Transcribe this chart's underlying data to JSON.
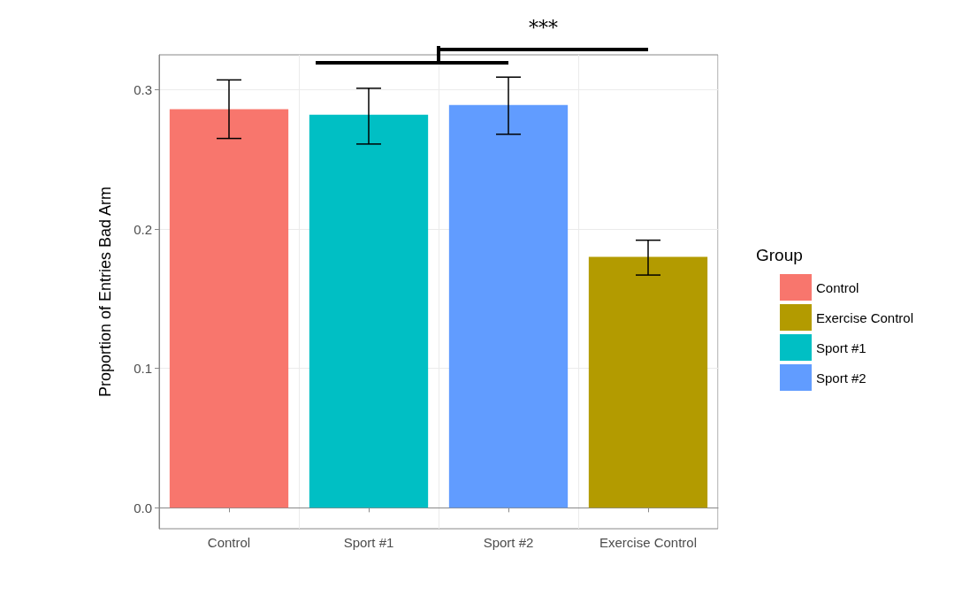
{
  "chart_data": {
    "type": "bar",
    "ylabel": "Proportion of Entries Bad Arm",
    "legend_title": "Group",
    "categories": [
      "Control",
      "Sport #1",
      "Sport #2",
      "Exercise Control"
    ],
    "series": [
      {
        "name": "Control",
        "color": "#f8766d",
        "values": [
          0.286,
          null,
          null,
          null
        ],
        "errors": [
          [
            0.265,
            0.307
          ],
          null,
          null,
          null
        ]
      },
      {
        "name": "Exercise Control",
        "color": "#b39b00",
        "values": [
          null,
          null,
          null,
          0.18
        ],
        "errors": [
          null,
          null,
          null,
          [
            0.167,
            0.192
          ]
        ]
      },
      {
        "name": "Sport #1",
        "color": "#00bfc4",
        "values": [
          null,
          0.282,
          null,
          null
        ],
        "errors": [
          null,
          [
            0.261,
            0.301
          ],
          null,
          null
        ]
      },
      {
        "name": "Sport #2",
        "color": "#619cff",
        "values": [
          null,
          null,
          0.289,
          null
        ],
        "errors": [
          null,
          null,
          [
            0.268,
            0.309
          ],
          null
        ]
      }
    ],
    "stacked": true,
    "ylim": [
      -0.015,
      0.325
    ],
    "yticks": [
      {
        "value": 0,
        "label": "0.0"
      },
      0.1,
      0.2,
      0.3
    ],
    "grid": true,
    "legend": "right",
    "annotations": [
      "***"
    ]
  }
}
